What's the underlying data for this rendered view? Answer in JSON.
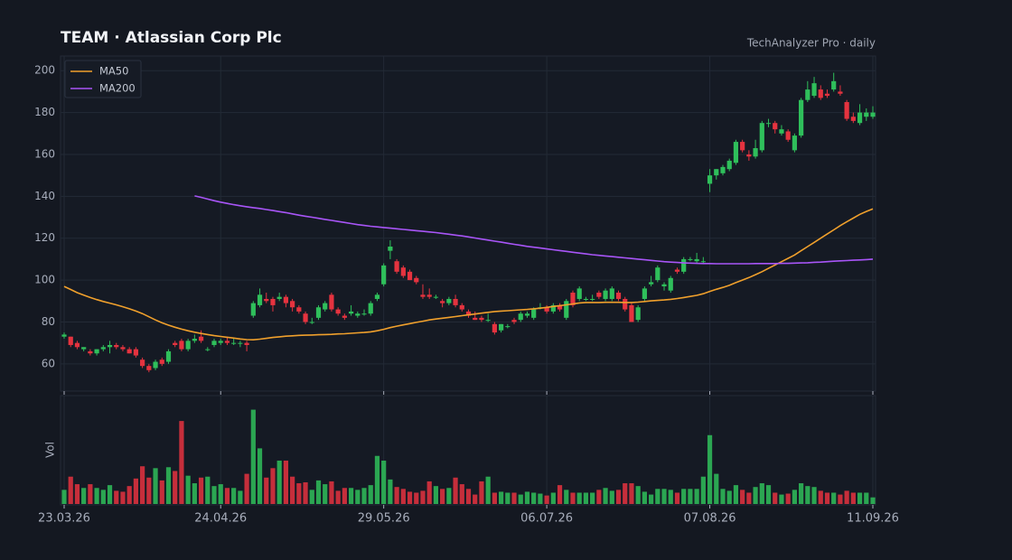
{
  "chart_data": {
    "type": "candlestick",
    "title": "TEAM  ·  Atlassian Corp Plc",
    "subtitle": "TechAnalyzer Pro · daily",
    "categories": [
      "23.03.26",
      null,
      null,
      null,
      null,
      null,
      null,
      null,
      null,
      null,
      null,
      null,
      null,
      null,
      null,
      null,
      null,
      null,
      null,
      null,
      null,
      null,
      null,
      null,
      "24.04.26",
      null,
      null,
      null,
      null,
      null,
      null,
      null,
      null,
      null,
      null,
      null,
      null,
      null,
      null,
      null,
      null,
      null,
      null,
      null,
      null,
      null,
      null,
      null,
      null,
      "29.05.26",
      null,
      null,
      null,
      null,
      null,
      null,
      null,
      null,
      null,
      null,
      null,
      null,
      null,
      null,
      null,
      null,
      null,
      null,
      null,
      null,
      null,
      null,
      null,
      null,
      "06.07.26",
      null,
      null,
      null,
      null,
      null,
      null,
      null,
      null,
      null,
      null,
      null,
      null,
      null,
      null,
      null,
      null,
      null,
      null,
      null,
      null,
      null,
      null,
      null,
      null,
      "07.08.26",
      null,
      null,
      null,
      null,
      null,
      null,
      null,
      null,
      null,
      null,
      null,
      null,
      null,
      null,
      null,
      null,
      null,
      null,
      null,
      null,
      null,
      null,
      null,
      null,
      "11.09.26"
    ],
    "ohlc": [
      [
        73,
        75,
        72,
        74
      ],
      [
        73,
        73,
        68,
        69
      ],
      [
        70,
        71,
        67,
        68
      ],
      [
        67,
        68,
        66,
        68
      ],
      [
        66,
        67,
        64,
        65
      ],
      [
        65,
        67,
        64,
        67
      ],
      [
        67,
        69,
        66,
        68
      ],
      [
        68,
        71,
        65,
        69
      ],
      [
        69,
        70,
        67,
        68
      ],
      [
        68,
        69,
        66,
        67
      ],
      [
        67,
        68,
        65,
        65
      ],
      [
        67,
        68,
        63,
        64
      ],
      [
        62,
        63,
        58,
        59
      ],
      [
        59,
        60,
        56,
        57
      ],
      [
        58,
        62,
        57,
        61
      ],
      [
        62,
        63,
        59,
        60
      ],
      [
        61,
        67,
        60,
        66
      ],
      [
        70,
        71,
        68,
        69
      ],
      [
        71,
        72,
        66,
        67
      ],
      [
        67,
        72,
        66,
        71
      ],
      [
        71,
        74,
        70,
        72
      ],
      [
        73,
        76,
        70,
        71
      ],
      [
        67,
        68,
        66,
        67
      ],
      [
        69,
        72,
        68,
        71
      ],
      [
        70,
        72,
        69,
        71
      ],
      [
        71,
        73,
        69,
        70
      ],
      [
        70,
        72,
        69,
        70
      ],
      [
        70,
        71,
        68,
        70
      ],
      [
        70,
        71,
        66,
        69
      ],
      [
        83,
        90,
        82,
        89
      ],
      [
        88,
        96,
        87,
        93
      ],
      [
        91,
        94,
        89,
        90
      ],
      [
        91,
        92,
        85,
        88
      ],
      [
        91,
        94,
        90,
        92
      ],
      [
        92,
        93,
        87,
        89
      ],
      [
        90,
        91,
        85,
        87
      ],
      [
        87,
        88,
        84,
        85
      ],
      [
        84,
        85,
        79,
        80
      ],
      [
        80,
        82,
        79,
        80
      ],
      [
        82,
        88,
        81,
        87
      ],
      [
        86,
        90,
        85,
        89
      ],
      [
        93,
        94,
        85,
        86
      ],
      [
        86,
        87,
        83,
        84
      ],
      [
        83,
        84,
        81,
        82
      ],
      [
        84,
        88,
        83,
        85
      ],
      [
        83,
        85,
        82,
        84
      ],
      [
        84,
        86,
        83,
        84
      ],
      [
        84,
        90,
        83,
        89
      ],
      [
        91,
        94,
        90,
        93
      ],
      [
        98,
        108,
        97,
        107
      ],
      [
        114,
        119,
        110,
        116
      ],
      [
        109,
        110,
        103,
        104
      ],
      [
        106,
        107,
        101,
        102
      ],
      [
        104,
        105,
        100,
        100
      ],
      [
        101,
        102,
        98,
        99
      ],
      [
        93,
        98,
        91,
        92
      ],
      [
        93,
        96,
        91,
        92
      ],
      [
        92,
        93,
        91,
        92
      ],
      [
        90,
        91,
        87,
        89
      ],
      [
        89,
        92,
        88,
        91
      ],
      [
        91,
        93,
        87,
        88
      ],
      [
        88,
        89,
        85,
        86
      ],
      [
        85,
        86,
        82,
        83
      ],
      [
        82,
        85,
        81,
        81
      ],
      [
        82,
        83,
        80,
        81
      ],
      [
        81,
        84,
        80,
        81
      ],
      [
        79,
        80,
        74,
        75
      ],
      [
        76,
        79,
        75,
        79
      ],
      [
        78,
        79,
        77,
        78
      ],
      [
        81,
        82,
        79,
        80
      ],
      [
        81,
        85,
        80,
        84
      ],
      [
        83,
        85,
        82,
        84
      ],
      [
        82,
        87,
        81,
        86
      ],
      [
        87,
        89,
        86,
        87
      ],
      [
        87,
        88,
        84,
        85
      ],
      [
        85,
        89,
        84,
        88
      ],
      [
        88,
        89,
        85,
        86
      ],
      [
        82,
        91,
        81,
        90
      ],
      [
        94,
        95,
        87,
        88
      ],
      [
        91,
        97,
        90,
        96
      ],
      [
        91,
        92,
        90,
        91
      ],
      [
        91,
        93,
        90,
        91
      ],
      [
        94,
        95,
        91,
        92
      ],
      [
        91,
        96,
        90,
        95
      ],
      [
        91,
        97,
        90,
        96
      ],
      [
        94,
        95,
        90,
        91
      ],
      [
        91,
        92,
        85,
        86
      ],
      [
        88,
        89,
        80,
        80
      ],
      [
        81,
        88,
        80,
        87
      ],
      [
        91,
        97,
        90,
        96
      ],
      [
        98,
        102,
        97,
        99
      ],
      [
        100,
        107,
        99,
        106
      ],
      [
        97,
        99,
        95,
        98
      ],
      [
        95,
        102,
        94,
        101
      ],
      [
        105,
        106,
        103,
        104
      ],
      [
        104,
        111,
        103,
        110
      ],
      [
        110,
        111,
        109,
        110
      ],
      [
        109,
        113,
        108,
        110
      ],
      [
        109,
        111,
        108,
        109
      ],
      [
        146,
        153,
        142,
        150
      ],
      [
        150,
        153,
        148,
        153
      ],
      [
        151,
        155,
        150,
        154
      ],
      [
        153,
        158,
        152,
        157
      ],
      [
        156,
        167,
        155,
        166
      ],
      [
        166,
        167,
        161,
        162
      ],
      [
        160,
        162,
        157,
        159
      ],
      [
        159,
        167,
        158,
        163
      ],
      [
        162,
        176,
        161,
        175
      ],
      [
        175,
        177,
        173,
        175
      ],
      [
        175,
        176,
        170,
        172
      ],
      [
        170,
        174,
        169,
        172
      ],
      [
        171,
        172,
        166,
        167
      ],
      [
        162,
        170,
        161,
        169
      ],
      [
        169,
        187,
        168,
        186
      ],
      [
        186,
        195,
        185,
        191
      ],
      [
        188,
        197,
        187,
        194
      ],
      [
        191,
        193,
        186,
        187
      ],
      [
        189,
        191,
        187,
        188
      ],
      [
        191,
        199,
        190,
        195
      ],
      [
        190,
        193,
        188,
        189
      ],
      [
        185,
        186,
        176,
        177
      ],
      [
        178,
        180,
        175,
        176
      ],
      [
        175,
        184,
        174,
        180
      ],
      [
        178,
        182,
        176,
        180
      ],
      [
        178,
        183,
        177,
        180
      ]
    ],
    "volume": [
      1.5,
      2.9,
      2.1,
      1.7,
      2.1,
      1.7,
      1.5,
      2.0,
      1.4,
      1.3,
      1.9,
      2.7,
      4.0,
      2.8,
      3.8,
      2.5,
      3.9,
      3.5,
      8.8,
      3.0,
      2.2,
      2.8,
      2.9,
      1.9,
      2.1,
      1.7,
      1.7,
      1.4,
      3.2,
      10,
      5.9,
      2.8,
      3.8,
      4.6,
      4.6,
      2.9,
      2.2,
      2.3,
      1.5,
      2.5,
      2.1,
      2.4,
      1.4,
      1.7,
      1.7,
      1.5,
      1.7,
      2.0,
      5.1,
      4.6,
      2.6,
      1.8,
      1.6,
      1.3,
      1.2,
      1.4,
      2.4,
      1.9,
      1.6,
      1.7,
      2.8,
      2.1,
      1.6,
      1.0,
      2.4,
      2.9,
      1.2,
      1.3,
      1.2,
      1.2,
      1.0,
      1.3,
      1.2,
      1.1,
      0.9,
      1.2,
      2.0,
      1.5,
      1.2,
      1.2,
      1.2,
      1.2,
      1.5,
      1.7,
      1.4,
      1.5,
      2.2,
      2.2,
      1.9,
      1.3,
      1.0,
      1.6,
      1.6,
      1.5,
      1.2,
      1.6,
      1.6,
      1.6,
      2.9,
      7.3,
      3.2,
      1.6,
      1.4,
      2.0,
      1.5,
      1.2,
      1.8,
      2.2,
      2.0,
      1.2,
      1.0,
      1.1,
      1.5,
      2.2,
      1.9,
      1.8,
      1.4,
      1.2,
      1.2,
      1.0,
      1.4,
      1.2,
      1.2,
      1.2,
      0.7
    ],
    "volume_label": "Vol",
    "series": [
      {
        "name": "MA50",
        "color": "#f0a02c",
        "values": [
          97,
          95.5,
          94,
          92.8,
          91.7,
          90.7,
          89.8,
          89,
          88.2,
          87.3,
          86.3,
          85.2,
          84,
          82.5,
          81,
          79.6,
          78.5,
          77.5,
          76.6,
          75.8,
          75.1,
          74.5,
          74,
          73.5,
          73.1,
          72.7,
          72.3,
          71.9,
          71.6,
          71.5,
          71.8,
          72.2,
          72.6,
          72.9,
          73.2,
          73.4,
          73.6,
          73.7,
          73.8,
          73.9,
          74,
          74.1,
          74.3,
          74.4,
          74.6,
          74.8,
          75,
          75.3,
          75.8,
          76.5,
          77.3,
          78,
          78.6,
          79.2,
          79.8,
          80.4,
          81,
          81.4,
          81.8,
          82.2,
          82.6,
          83,
          83.4,
          83.8,
          84.2,
          84.6,
          85,
          85.2,
          85.4,
          85.6,
          85.8,
          86,
          86.3,
          86.6,
          87,
          87.4,
          87.8,
          88.2,
          88.6,
          89.1,
          89.3,
          89.3,
          89.3,
          89.4,
          89.4,
          89.4,
          89.3,
          89.3,
          89.5,
          89.8,
          90.1,
          90.3,
          90.5,
          90.8,
          91.2,
          91.7,
          92.2,
          92.7,
          93.5,
          94.6,
          95.6,
          96.5,
          97.5,
          98.8,
          100,
          101.2,
          102.6,
          104,
          105.6,
          107.2,
          108.8,
          110.4,
          112,
          114,
          116,
          118,
          120,
          122,
          124,
          126,
          127.8,
          129.6,
          131.4,
          132.8,
          134
        ]
      },
      {
        "name": "MA200",
        "color": "#a855f7",
        "values": [
          null,
          null,
          null,
          null,
          null,
          null,
          null,
          null,
          null,
          null,
          null,
          null,
          null,
          null,
          null,
          null,
          null,
          null,
          null,
          null,
          140.2,
          139.5,
          138.7,
          137.9,
          137.2,
          136.6,
          136,
          135.5,
          135,
          134.6,
          134.2,
          133.7,
          133.2,
          132.7,
          132.2,
          131.6,
          131,
          130.5,
          130,
          129.5,
          129,
          128.5,
          128,
          127.5,
          127,
          126.5,
          126.1,
          125.7,
          125.4,
          125.1,
          124.8,
          124.5,
          124.2,
          123.9,
          123.6,
          123.3,
          123,
          122.7,
          122.3,
          121.9,
          121.5,
          121.1,
          120.6,
          120.1,
          119.6,
          119.1,
          118.6,
          118.1,
          117.6,
          117.1,
          116.6,
          116.1,
          115.7,
          115.3,
          114.9,
          114.5,
          114.1,
          113.7,
          113.3,
          112.9,
          112.5,
          112.1,
          111.8,
          111.5,
          111.2,
          110.9,
          110.6,
          110.3,
          110,
          109.7,
          109.4,
          109.1,
          108.8,
          108.6,
          108.4,
          108.2,
          108.1,
          108,
          107.9,
          107.9,
          107.8,
          107.8,
          107.8,
          107.8,
          107.8,
          107.8,
          107.9,
          107.9,
          107.9,
          107.9,
          108,
          108,
          108.1,
          108.2,
          108.3,
          108.5,
          108.6,
          108.8,
          109,
          109.2,
          109.3,
          109.5,
          109.6,
          109.8,
          110
        ]
      }
    ],
    "up_color": "#2fbf5b",
    "down_color": "#e5333f",
    "ylim": [
      47,
      207
    ],
    "yticks": [
      60,
      80,
      100,
      120,
      140,
      160,
      180,
      200
    ],
    "vol_ylim": [
      0,
      11.3
    ],
    "grid": true,
    "legend": "upper left"
  }
}
